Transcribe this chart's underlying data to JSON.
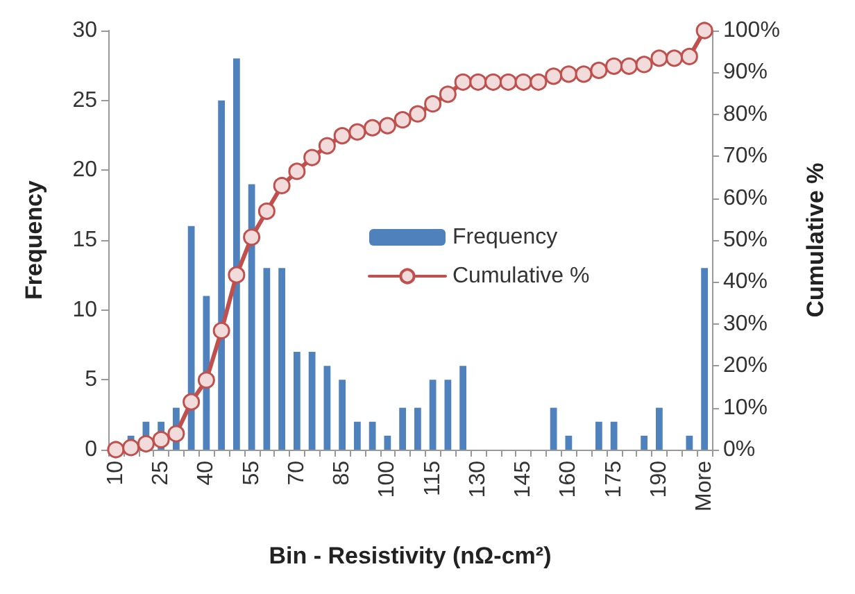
{
  "chart_data": {
    "type": "bar",
    "xlabel": "Bin - Resistivity (nΩ-cm²)",
    "ylabel": "Frequency",
    "y2label": "Cumulative %",
    "categories": [
      "10",
      null,
      null,
      "25",
      null,
      null,
      "40",
      null,
      null,
      "55",
      null,
      null,
      "70",
      null,
      null,
      "85",
      null,
      null,
      "100",
      null,
      null,
      "115",
      null,
      null,
      "130",
      null,
      null,
      "145",
      null,
      null,
      "160",
      null,
      null,
      "175",
      null,
      null,
      "190",
      null,
      null,
      "More"
    ],
    "series": [
      {
        "name": "Frequency",
        "color": "#4f81bd",
        "values": [
          0,
          1,
          2,
          2,
          3,
          16,
          11,
          25,
          28,
          19,
          13,
          13,
          7,
          7,
          6,
          5,
          2,
          2,
          1,
          3,
          3,
          5,
          5,
          6,
          0,
          0,
          0,
          0,
          0,
          3,
          1,
          0,
          2,
          2,
          0,
          1,
          3,
          0,
          1,
          13
        ]
      },
      {
        "name": "Cumulative %",
        "type": "line",
        "axis": "y2",
        "color": "#c0504d",
        "marker": "circle",
        "values": [
          0,
          0.5,
          1.4,
          2.4,
          3.8,
          11.4,
          16.6,
          28.4,
          41.7,
          50.7,
          56.9,
          63.0,
          66.4,
          69.7,
          72.5,
          74.9,
          75.8,
          76.8,
          77.3,
          78.7,
          80.1,
          82.5,
          84.8,
          87.7,
          87.7,
          87.7,
          87.7,
          87.7,
          87.7,
          89.1,
          89.6,
          89.6,
          90.5,
          91.5,
          91.5,
          91.9,
          93.4,
          93.4,
          93.8,
          100
        ]
      }
    ],
    "ylim": [
      0,
      30
    ],
    "yticks": [
      0,
      5,
      10,
      15,
      20,
      25,
      30
    ],
    "y2lim": [
      0,
      100
    ],
    "y2ticks": [
      {
        "value": 0,
        "label": "0%"
      },
      {
        "value": 10,
        "label": "10%"
      },
      {
        "value": 20,
        "label": "20%"
      },
      {
        "value": 30,
        "label": "30%"
      },
      {
        "value": 40,
        "label": "40%"
      },
      {
        "value": 50,
        "label": "50%"
      },
      {
        "value": 60,
        "label": "60%"
      },
      {
        "value": 70,
        "label": "70%"
      },
      {
        "value": 80,
        "label": "80%"
      },
      {
        "value": 90,
        "label": "90%"
      },
      {
        "value": 100,
        "label": "100%"
      }
    ],
    "grid": false,
    "legend": "right"
  }
}
